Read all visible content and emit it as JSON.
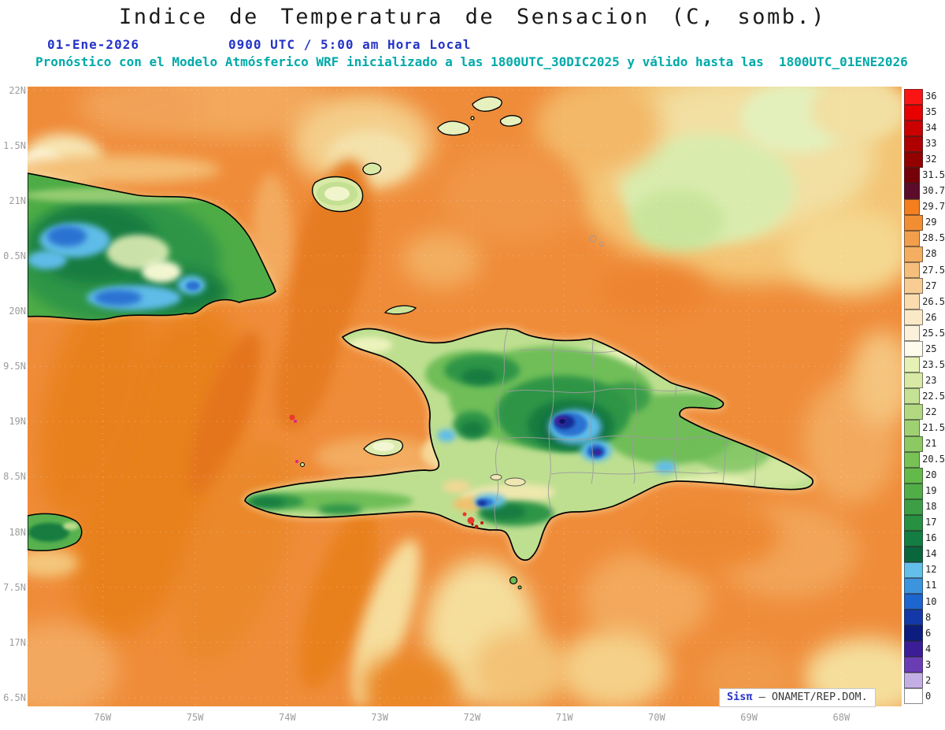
{
  "title": "Indice de Temperatura de Sensacion (C, somb.)",
  "subtitle": {
    "date": "01-Ene-2026",
    "time": "0900 UTC / 5:00 am Hora Local",
    "model_info": "Pronóstico con el Modelo Atmósferico WRF inicializado a las 1800UTC_30DIC2025 y válido hasta las  1800UTC_01ENE2026"
  },
  "map": {
    "y_axis_labels": [
      "22N",
      "1.5N",
      "21N",
      "0.5N",
      "20N",
      "9.5N",
      "19N",
      "8.5N",
      "18N",
      "7.5N",
      "17N",
      "6.5N"
    ],
    "x_axis_labels": [
      "76W",
      "75W",
      "74W",
      "73W",
      "72W",
      "71W",
      "70W",
      "69W",
      "68W"
    ]
  },
  "colorbar": {
    "units": "C",
    "segments": [
      {
        "label": "36",
        "color": "#FB1414"
      },
      {
        "label": "35",
        "color": "#E60000"
      },
      {
        "label": "34",
        "color": "#CB0000"
      },
      {
        "label": "33",
        "color": "#AE0000"
      },
      {
        "label": "32",
        "color": "#920000"
      },
      {
        "label": "31.5",
        "color": "#75000A"
      },
      {
        "label": "30.7",
        "color": "#5C0B2A"
      },
      {
        "label": "29.7",
        "color": "#F57E1E"
      },
      {
        "label": "29",
        "color": "#F18E34"
      },
      {
        "label": "28.5",
        "color": "#F29E4B"
      },
      {
        "label": "28",
        "color": "#F4AE62"
      },
      {
        "label": "27.5",
        "color": "#F6BE7B"
      },
      {
        "label": "27",
        "color": "#F8CD94"
      },
      {
        "label": "26.5",
        "color": "#FADCAE"
      },
      {
        "label": "26",
        "color": "#FBE8C6"
      },
      {
        "label": "25.5",
        "color": "#FCF2DB"
      },
      {
        "label": "25",
        "color": "#FDFAEE"
      },
      {
        "label": "23.5",
        "color": "#E6F1B6"
      },
      {
        "label": "23",
        "color": "#D7E9A4"
      },
      {
        "label": "22.5",
        "color": "#C5E194"
      },
      {
        "label": "22",
        "color": "#B2D982"
      },
      {
        "label": "21.5",
        "color": "#9FD172"
      },
      {
        "label": "21",
        "color": "#8CC963"
      },
      {
        "label": "20.5",
        "color": "#78C155"
      },
      {
        "label": "20",
        "color": "#64B94B"
      },
      {
        "label": "19",
        "color": "#50AD47"
      },
      {
        "label": "18",
        "color": "#3C9F45"
      },
      {
        "label": "17",
        "color": "#289043"
      },
      {
        "label": "16",
        "color": "#147D41"
      },
      {
        "label": "14",
        "color": "#0A663D"
      },
      {
        "label": "12",
        "color": "#63BFE9"
      },
      {
        "label": "11",
        "color": "#3B94DD"
      },
      {
        "label": "10",
        "color": "#1D65CF"
      },
      {
        "label": "8",
        "color": "#1339A9"
      },
      {
        "label": "6",
        "color": "#0C1D7F"
      },
      {
        "label": "4",
        "color": "#3B1D97"
      },
      {
        "label": "3",
        "color": "#6B3DB5"
      },
      {
        "label": "2",
        "color": "#C4AFE5"
      },
      {
        "label": "0",
        "color": "#FFFFFF"
      }
    ]
  },
  "footer": {
    "brand": "Sisπ",
    "credit": " – ONAMET/REP.DOM."
  }
}
